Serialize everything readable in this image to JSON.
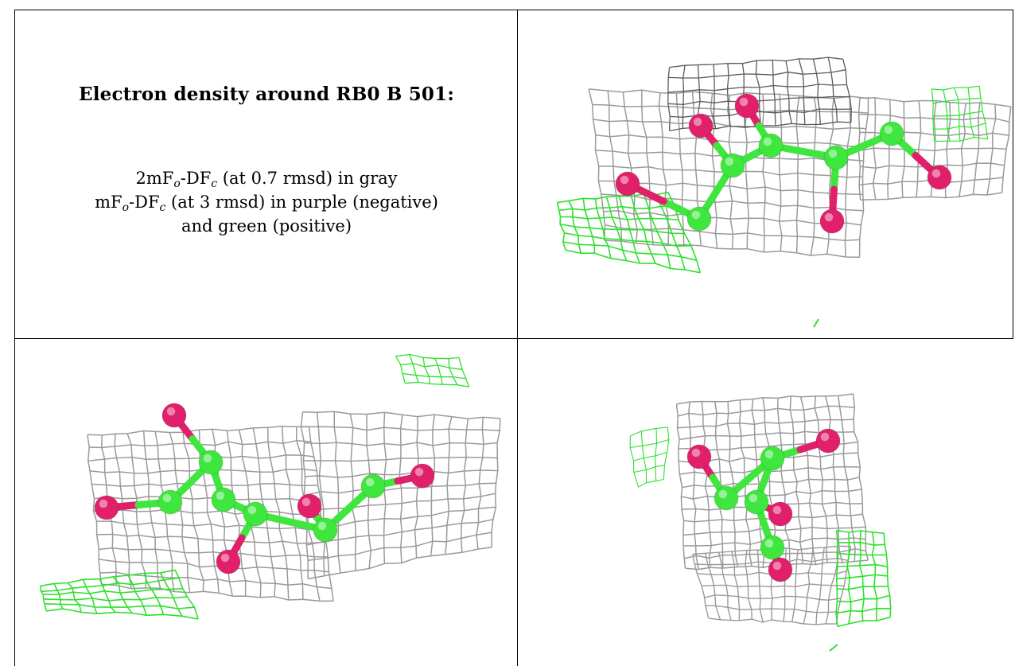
{
  "panel_text": {
    "title": "Electron density around RB0 B 501:",
    "line1": {
      "a": "2mF",
      "s1": "o",
      "b": "-DF",
      "s2": "c",
      "rest": " (at 0.7 rmsd) in gray"
    },
    "line2": {
      "a": "mF",
      "s1": "o",
      "b": "-DF",
      "s2": "c",
      "rest": " (at 3 rmsd) in purple (negative)"
    },
    "line3": "and green (positive)"
  },
  "colors": {
    "mesh_gray": "#9a9a9a",
    "mesh_dark": "#5a5a5a",
    "mesh_green": "#2ee02e",
    "carbon": "#3ee63e",
    "oxygen": "#e0206a",
    "border": "#000000"
  },
  "views": [
    {
      "name": "view-top-right"
    },
    {
      "name": "view-bottom-left"
    },
    {
      "name": "view-bottom-right"
    }
  ]
}
